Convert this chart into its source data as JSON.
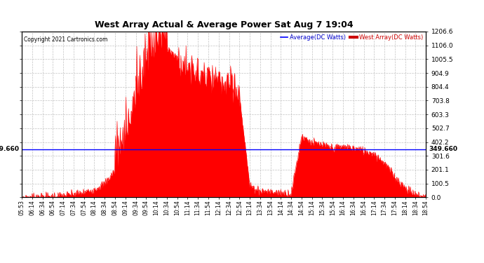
{
  "title": "West Array Actual & Average Power Sat Aug 7 19:04",
  "copyright": "Copyright 2021 Cartronics.com",
  "legend_avg": "Average(DC Watts)",
  "legend_west": "West Array(DC Watts)",
  "average_value": 349.66,
  "ymax": 1206.6,
  "ymin": 0.0,
  "yticks_right": [
    0.0,
    100.5,
    201.1,
    301.6,
    402.2,
    502.7,
    603.3,
    703.8,
    804.4,
    904.9,
    1005.5,
    1106.0,
    1206.6
  ],
  "ylabel_avg": "349.660",
  "background_color": "#ffffff",
  "fill_color": "#ff0000",
  "avg_line_color": "#0000ff",
  "grid_color": "#bbbbbb",
  "title_color": "#000000",
  "avg_label_color": "#0000cc",
  "west_label_color": "#cc0000",
  "x_tick_labels": [
    "05:53",
    "06:14",
    "06:34",
    "06:54",
    "07:14",
    "07:34",
    "07:54",
    "08:14",
    "08:34",
    "08:54",
    "09:14",
    "09:34",
    "09:54",
    "10:14",
    "10:34",
    "10:54",
    "11:14",
    "11:34",
    "11:54",
    "12:14",
    "12:34",
    "12:54",
    "13:14",
    "13:34",
    "13:54",
    "14:14",
    "14:34",
    "14:54",
    "15:14",
    "15:34",
    "15:54",
    "16:14",
    "16:34",
    "16:54",
    "17:14",
    "17:34",
    "17:54",
    "18:14",
    "18:34",
    "18:54"
  ],
  "figwidth": 6.9,
  "figheight": 3.75,
  "dpi": 100
}
